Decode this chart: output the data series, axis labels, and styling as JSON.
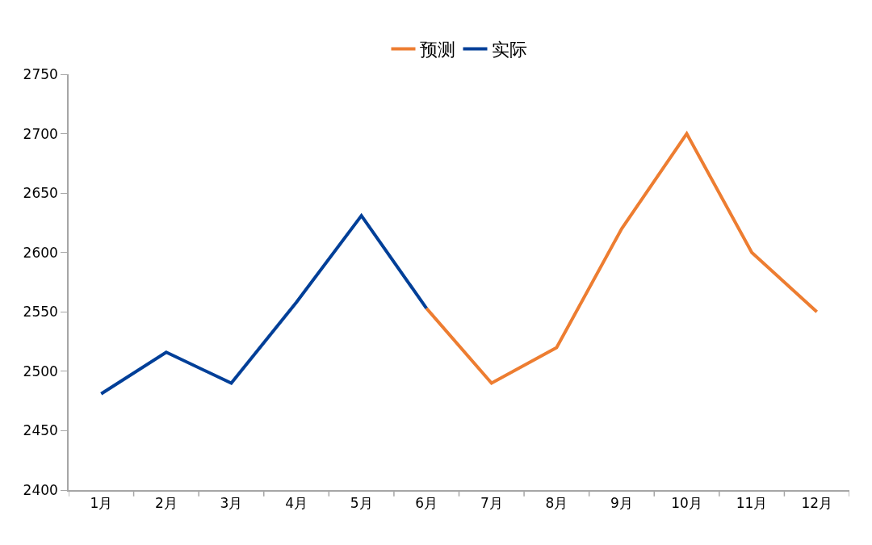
{
  "chart_data": {
    "type": "line",
    "categories": [
      "1月",
      "2月",
      "3月",
      "4月",
      "5月",
      "6月",
      "7月",
      "8月",
      "9月",
      "10月",
      "11月",
      "12月"
    ],
    "series": [
      {
        "name": "预测",
        "color": "#ed7d31",
        "values": [
          null,
          null,
          null,
          null,
          null,
          2553,
          2490,
          2520,
          2620,
          2700,
          2600,
          2550
        ]
      },
      {
        "name": "实际",
        "color": "#003f98",
        "values": [
          2481,
          2516,
          2490,
          2558,
          2631,
          2553,
          null,
          null,
          null,
          null,
          null,
          null
        ]
      }
    ],
    "ylim": [
      2400,
      2750
    ],
    "yticks": [
      2400,
      2450,
      2500,
      2550,
      2600,
      2650,
      2700,
      2750
    ],
    "legend": "top",
    "marker": "none",
    "line_style": "solid"
  }
}
